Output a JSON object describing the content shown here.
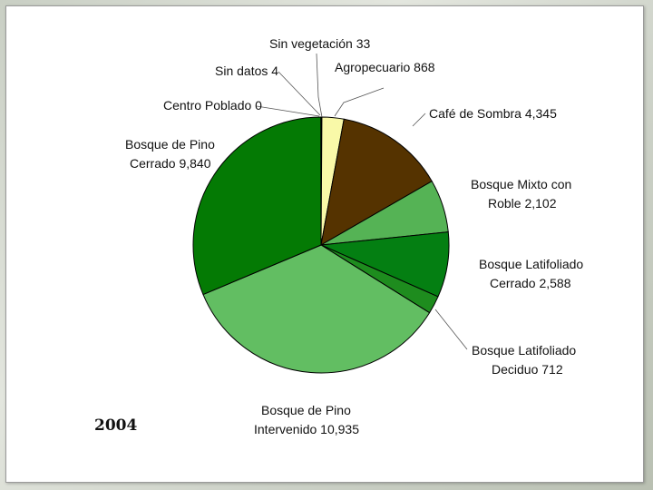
{
  "chart_data": {
    "type": "pie",
    "title": "",
    "year_label": "2004",
    "slices": [
      {
        "label": "Sin vegetación",
        "value": 33,
        "display": "Sin vegetación 33",
        "color": "#f9f9a8"
      },
      {
        "label": "Agropecuario",
        "value": 868,
        "display": "Agropecuario 868",
        "color": "#f9f9a8"
      },
      {
        "label": "Café de Sombra",
        "value": 4345,
        "display": "Café de Sombra 4,345",
        "color": "#553300"
      },
      {
        "label": "Bosque Mixto con Roble",
        "value": 2102,
        "display": "Bosque Mixto con Roble 2,102",
        "color": "#55b355"
      },
      {
        "label": "Bosque Latifoliado Cerrado",
        "value": 2588,
        "display": "Bosque Latifoliado Cerrado 2,588",
        "color": "#047f12"
      },
      {
        "label": "Bosque Latifoliado Deciduo",
        "value": 712,
        "display": "Bosque Latifoliado Deciduo 712",
        "color": "#1e8c1e"
      },
      {
        "label": "Bosque de Pino Intervenido",
        "value": 10935,
        "display": "Bosque de Pino Intervenido 10,935",
        "color": "#62be62"
      },
      {
        "label": "Bosque de Pino Cerrado",
        "value": 9840,
        "display": "Bosque de Pino Cerrado 9,840",
        "color": "#047a04"
      },
      {
        "label": "Centro Poblado",
        "value": 0,
        "display": "Centro Poblado 0",
        "color": "#ffffff"
      },
      {
        "label": "Sin datos",
        "value": 4,
        "display": "Sin datos 4",
        "color": "#ffffff"
      }
    ]
  }
}
